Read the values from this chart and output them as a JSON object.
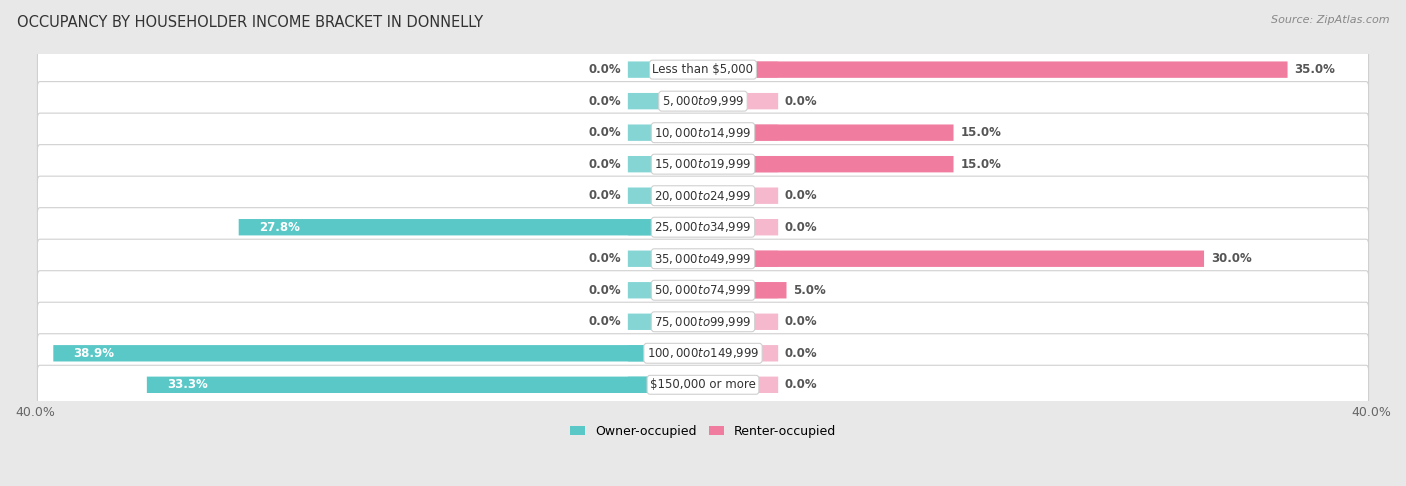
{
  "title": "OCCUPANCY BY HOUSEHOLDER INCOME BRACKET IN DONNELLY",
  "source": "Source: ZipAtlas.com",
  "categories": [
    "Less than $5,000",
    "$5,000 to $9,999",
    "$10,000 to $14,999",
    "$15,000 to $19,999",
    "$20,000 to $24,999",
    "$25,000 to $34,999",
    "$35,000 to $49,999",
    "$50,000 to $74,999",
    "$75,000 to $99,999",
    "$100,000 to $149,999",
    "$150,000 or more"
  ],
  "owner_values": [
    0.0,
    0.0,
    0.0,
    0.0,
    0.0,
    27.8,
    0.0,
    0.0,
    0.0,
    38.9,
    33.3
  ],
  "renter_values": [
    35.0,
    0.0,
    15.0,
    15.0,
    0.0,
    0.0,
    30.0,
    5.0,
    0.0,
    0.0,
    0.0
  ],
  "owner_color": "#5bc8c8",
  "owner_color_stub": "#85d5d5",
  "renter_color": "#f07ca0",
  "renter_color_stub": "#f5b8cc",
  "axis_max": 40.0,
  "stub_size": 4.5,
  "bg_color": "#e8e8e8",
  "row_bg_even": "#f5f5f5",
  "row_bg_odd": "#ececec",
  "label_fontsize": 8.5,
  "cat_fontsize": 8.5,
  "title_fontsize": 10.5,
  "bar_height": 0.52,
  "legend_owner": "Owner-occupied",
  "legend_renter": "Renter-occupied"
}
